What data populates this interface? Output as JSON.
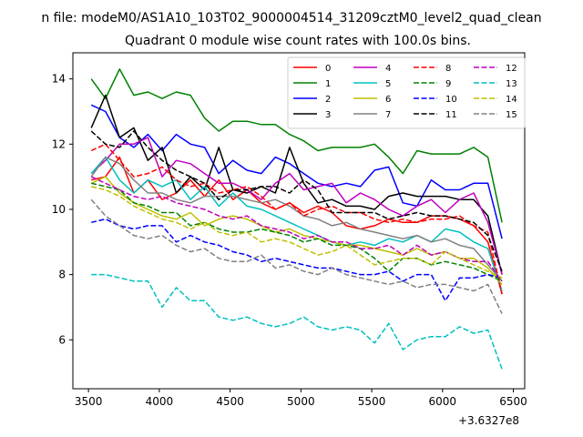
{
  "chart_data": {
    "type": "line",
    "suptitle": "n file: modeM0/AS1A10_103T02_9000004514_31209cztM0_level2_quad_clean",
    "title": "Quadrant 0 module wise count rates with 100.0s bins.",
    "x_offset_label": "+3.6327e8",
    "xlim": [
      3390,
      6580
    ],
    "ylim": [
      4.5,
      14.8
    ],
    "x_ticks": [
      3500,
      4000,
      4500,
      5000,
      5500,
      6000,
      6500
    ],
    "y_ticks": [
      6,
      8,
      10,
      12,
      14
    ],
    "grid": false,
    "legend_position": "top-right",
    "legend_columns": 4,
    "x": [
      3520,
      3620,
      3720,
      3820,
      3920,
      4020,
      4120,
      4220,
      4320,
      4420,
      4520,
      4620,
      4720,
      4820,
      4920,
      5020,
      5120,
      5220,
      5320,
      5420,
      5520,
      5620,
      5720,
      5820,
      5920,
      6020,
      6120,
      6220,
      6320,
      6420
    ],
    "series": [
      {
        "name": "0",
        "color": "#ff0000",
        "dash": "solid",
        "values": [
          10.9,
          11.0,
          11.6,
          10.5,
          10.9,
          10.3,
          10.5,
          10.9,
          10.4,
          10.9,
          10.3,
          10.6,
          10.2,
          10.0,
          10.2,
          9.9,
          10.1,
          9.9,
          9.5,
          9.4,
          9.5,
          9.7,
          9.6,
          9.6,
          9.8,
          9.8,
          9.7,
          9.5,
          9.0,
          7.4
        ]
      },
      {
        "name": "1",
        "color": "#008000",
        "dash": "solid",
        "values": [
          14.0,
          13.4,
          14.3,
          13.5,
          13.6,
          13.4,
          13.6,
          13.5,
          12.8,
          12.4,
          12.7,
          12.7,
          12.6,
          12.6,
          12.3,
          12.1,
          11.8,
          11.9,
          11.9,
          11.9,
          12.0,
          11.6,
          11.1,
          11.8,
          11.7,
          11.7,
          11.7,
          11.9,
          11.6,
          9.6
        ]
      },
      {
        "name": "2",
        "color": "#0000ff",
        "dash": "solid",
        "values": [
          13.2,
          13.0,
          12.2,
          11.9,
          12.3,
          11.8,
          12.3,
          12.0,
          11.9,
          11.1,
          11.5,
          11.2,
          11.1,
          11.6,
          11.4,
          11.1,
          10.8,
          10.7,
          10.8,
          10.7,
          11.2,
          11.3,
          10.2,
          10.1,
          10.9,
          10.6,
          10.6,
          10.8,
          10.8,
          9.1
        ]
      },
      {
        "name": "3",
        "color": "#000000",
        "dash": "solid",
        "values": [
          12.5,
          13.5,
          12.2,
          12.5,
          11.5,
          11.9,
          10.5,
          11.0,
          10.6,
          11.9,
          10.6,
          10.5,
          10.7,
          10.5,
          11.9,
          10.8,
          10.2,
          10.3,
          10.1,
          10.1,
          10.0,
          10.4,
          10.5,
          10.4,
          10.4,
          10.4,
          10.3,
          10.3,
          9.8,
          8.0
        ]
      },
      {
        "name": "4",
        "color": "#bf00bf",
        "dash": "solid",
        "values": [
          11.1,
          11.5,
          12.0,
          12.0,
          12.2,
          11.0,
          11.5,
          11.4,
          11.1,
          10.8,
          10.8,
          10.6,
          10.3,
          10.8,
          11.1,
          10.6,
          10.7,
          10.8,
          10.2,
          10.5,
          10.3,
          10.0,
          9.8,
          10.1,
          10.3,
          9.9,
          10.3,
          10.5,
          9.6,
          8.0
        ]
      },
      {
        "name": "5",
        "color": "#00bfbf",
        "dash": "solid",
        "values": [
          11.1,
          11.6,
          10.9,
          10.5,
          10.9,
          10.7,
          10.9,
          10.3,
          10.7,
          10.1,
          10.5,
          10.1,
          10.0,
          9.8,
          9.6,
          9.4,
          9.2,
          9.0,
          8.9,
          9.0,
          8.9,
          9.1,
          9.0,
          9.2,
          9.0,
          9.4,
          9.3,
          9.0,
          8.8,
          7.5
        ]
      },
      {
        "name": "6",
        "color": "#bfbf00",
        "dash": "solid",
        "values": [
          10.8,
          11.0,
          10.5,
          10.2,
          10.0,
          9.8,
          9.7,
          9.9,
          9.5,
          9.7,
          9.8,
          9.7,
          9.5,
          9.3,
          9.4,
          9.2,
          9.1,
          9.0,
          8.9,
          8.9,
          8.8,
          8.7,
          8.6,
          8.8,
          8.6,
          8.7,
          8.5,
          8.5,
          8.2,
          7.7
        ]
      },
      {
        "name": "7",
        "color": "#808080",
        "dash": "solid",
        "values": [
          11.0,
          11.6,
          11.4,
          10.9,
          10.5,
          10.5,
          10.3,
          10.2,
          10.4,
          10.4,
          10.4,
          10.3,
          10.2,
          10.3,
          10.1,
          9.8,
          9.7,
          9.5,
          9.6,
          9.4,
          9.3,
          9.2,
          9.1,
          9.2,
          9.0,
          9.1,
          8.9,
          8.8,
          8.3,
          7.8
        ]
      },
      {
        "name": "8",
        "color": "#ff0000",
        "dash": "dashed",
        "values": [
          11.8,
          12.0,
          11.5,
          11.0,
          11.1,
          11.3,
          10.9,
          10.7,
          10.8,
          10.5,
          10.6,
          10.7,
          10.4,
          10.0,
          10.2,
          9.8,
          10.0,
          10.1,
          9.9,
          9.9,
          9.7,
          9.6,
          9.7,
          9.6,
          9.7,
          9.7,
          9.8,
          9.5,
          9.3,
          7.4
        ]
      },
      {
        "name": "9",
        "color": "#008000",
        "dash": "dashed",
        "values": [
          10.8,
          10.7,
          10.6,
          10.2,
          10.1,
          9.9,
          9.9,
          9.5,
          9.6,
          9.4,
          9.3,
          9.3,
          9.4,
          9.3,
          9.2,
          9.0,
          9.1,
          8.9,
          8.9,
          8.8,
          8.5,
          8.1,
          8.5,
          8.5,
          8.3,
          8.4,
          8.3,
          8.2,
          8.0,
          7.8
        ]
      },
      {
        "name": "10",
        "color": "#0000ff",
        "dash": "dashed",
        "values": [
          9.6,
          9.7,
          9.5,
          9.4,
          9.5,
          9.5,
          9.0,
          9.2,
          9.0,
          8.9,
          8.7,
          8.6,
          8.4,
          8.5,
          8.4,
          8.3,
          8.2,
          8.2,
          8.1,
          8.0,
          8.0,
          8.1,
          7.8,
          8.0,
          8.0,
          7.2,
          7.9,
          7.9,
          8.0,
          7.9
        ]
      },
      {
        "name": "11",
        "color": "#000000",
        "dash": "dashed",
        "values": [
          12.4,
          12.0,
          11.9,
          12.4,
          11.9,
          11.5,
          11.2,
          11.0,
          10.8,
          10.3,
          10.6,
          10.6,
          10.7,
          10.7,
          10.5,
          10.9,
          10.6,
          9.9,
          9.9,
          9.9,
          9.9,
          9.7,
          9.8,
          9.9,
          9.8,
          9.8,
          9.7,
          9.6,
          9.2,
          8.1
        ]
      },
      {
        "name": "12",
        "color": "#bf00bf",
        "dash": "dashed",
        "values": [
          11.0,
          10.8,
          10.6,
          10.4,
          10.3,
          10.4,
          10.2,
          10.1,
          10.0,
          9.8,
          9.7,
          9.8,
          9.5,
          9.4,
          9.3,
          9.1,
          9.2,
          9.0,
          9.0,
          8.8,
          8.8,
          8.9,
          8.6,
          8.9,
          8.6,
          8.7,
          8.5,
          8.4,
          8.4,
          7.8
        ]
      },
      {
        "name": "13",
        "color": "#00bfbf",
        "dash": "dashed",
        "values": [
          8.0,
          8.0,
          7.9,
          7.8,
          7.8,
          7.0,
          7.6,
          7.2,
          7.2,
          6.7,
          6.6,
          6.7,
          6.5,
          6.4,
          6.5,
          6.7,
          6.4,
          6.3,
          6.4,
          6.3,
          5.9,
          6.5,
          5.7,
          6.0,
          6.1,
          6.1,
          6.4,
          6.2,
          6.3,
          5.1
        ]
      },
      {
        "name": "14",
        "color": "#bfbf00",
        "dash": "dashed",
        "values": [
          10.7,
          10.6,
          10.4,
          10.1,
          9.9,
          9.7,
          9.6,
          9.4,
          9.6,
          9.3,
          9.2,
          9.3,
          9.0,
          9.1,
          9.0,
          8.8,
          8.6,
          8.7,
          8.9,
          8.6,
          8.3,
          8.4,
          8.5,
          8.5,
          8.3,
          8.7,
          8.5,
          8.3,
          8.1,
          7.9
        ]
      },
      {
        "name": "15",
        "color": "#808080",
        "dash": "dashed",
        "values": [
          10.3,
          9.8,
          9.5,
          9.2,
          9.1,
          9.2,
          8.9,
          8.7,
          8.8,
          8.5,
          8.4,
          8.4,
          8.6,
          8.2,
          8.3,
          8.1,
          8.0,
          8.2,
          8.0,
          7.9,
          7.8,
          7.7,
          7.8,
          7.6,
          7.7,
          7.7,
          7.6,
          7.5,
          7.7,
          6.8
        ]
      }
    ]
  }
}
